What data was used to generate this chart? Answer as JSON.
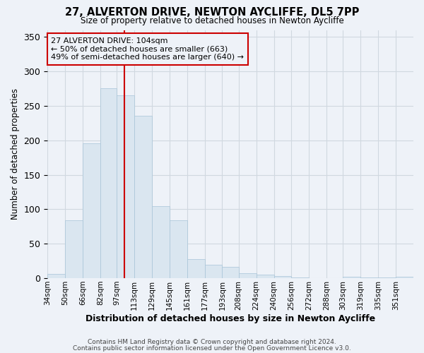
{
  "title": "27, ALVERTON DRIVE, NEWTON AYCLIFFE, DL5 7PP",
  "subtitle": "Size of property relative to detached houses in Newton Aycliffe",
  "xlabel": "Distribution of detached houses by size in Newton Aycliffe",
  "ylabel": "Number of detached properties",
  "bar_color": "#dae6f0",
  "bar_edge_color": "#a8c4d8",
  "categories": [
    "34sqm",
    "50sqm",
    "66sqm",
    "82sqm",
    "97sqm",
    "113sqm",
    "129sqm",
    "145sqm",
    "161sqm",
    "177sqm",
    "193sqm",
    "208sqm",
    "224sqm",
    "240sqm",
    "256sqm",
    "272sqm",
    "288sqm",
    "303sqm",
    "319sqm",
    "335sqm",
    "351sqm"
  ],
  "values": [
    6,
    84,
    196,
    276,
    265,
    236,
    104,
    84,
    28,
    20,
    16,
    7,
    5,
    3,
    1,
    0,
    0,
    2,
    1,
    1,
    2
  ],
  "ylim": [
    0,
    360
  ],
  "yticks": [
    0,
    50,
    100,
    150,
    200,
    250,
    300,
    350
  ],
  "marker_label": "27 ALVERTON DRIVE: 104sqm",
  "annotation_line1": "← 50% of detached houses are smaller (663)",
  "annotation_line2": "49% of semi-detached houses are larger (640) →",
  "vline_color": "#cc0000",
  "annotation_box_edge": "#cc0000",
  "footer1": "Contains HM Land Registry data © Crown copyright and database right 2024.",
  "footer2": "Contains public sector information licensed under the Open Government Licence v3.0.",
  "background_color": "#eef2f8",
  "plot_bg_color": "#eef2f8",
  "grid_color": "#d0d8e0",
  "bin_edges": [
    34,
    50,
    66,
    82,
    97,
    113,
    129,
    145,
    161,
    177,
    193,
    208,
    224,
    240,
    256,
    272,
    288,
    303,
    319,
    335,
    351,
    367
  ]
}
